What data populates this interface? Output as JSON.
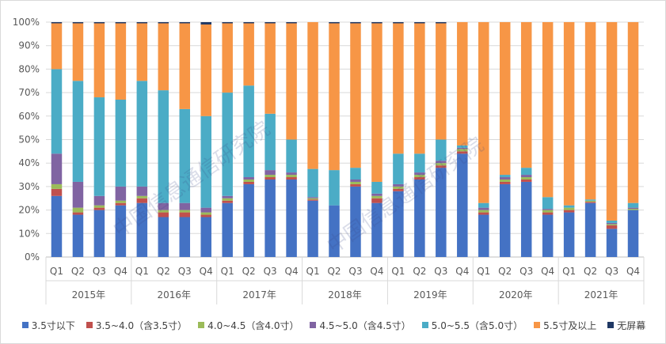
{
  "chart_data": {
    "type": "bar",
    "stacked": true,
    "percent": true,
    "ylim": [
      0,
      100
    ],
    "yticks": [
      "0%",
      "10%",
      "20%",
      "30%",
      "40%",
      "50%",
      "60%",
      "70%",
      "80%",
      "90%",
      "100%"
    ],
    "grid": true,
    "legend_position": "bottom",
    "categories": [
      "Q1",
      "Q2",
      "Q3",
      "Q4",
      "Q1",
      "Q2",
      "Q3",
      "Q4",
      "Q1",
      "Q2",
      "Q3",
      "Q4",
      "Q1",
      "Q2",
      "Q3",
      "Q4",
      "Q1",
      "Q2",
      "Q3",
      "Q4",
      "Q1",
      "Q2",
      "Q3",
      "Q4",
      "Q1",
      "Q2",
      "Q3",
      "Q4"
    ],
    "years": [
      "2015年",
      "2016年",
      "2017年",
      "2018年",
      "2019年",
      "2020年",
      "2021年"
    ],
    "series": [
      {
        "name": "3.5寸以下",
        "color": "#4472C4",
        "values": [
          26,
          18,
          20,
          22,
          23,
          17,
          17,
          17,
          23,
          31,
          33,
          33,
          24,
          22,
          30,
          23,
          28,
          33,
          38,
          44,
          18,
          31,
          32,
          18,
          19,
          23,
          12,
          20
        ]
      },
      {
        "name": "3.5~4.0（含3.5寸）",
        "color": "#C0504D",
        "values": [
          3,
          1,
          1,
          1,
          2,
          2,
          2,
          1,
          1,
          1,
          1,
          1,
          0.5,
          0,
          1,
          2,
          1,
          1,
          1,
          1,
          1,
          1,
          1,
          1,
          1,
          0.5,
          1.5,
          0
        ]
      },
      {
        "name": "4.0~4.5（含4.0寸）",
        "color": "#9BBB59",
        "values": [
          2,
          2,
          1,
          1,
          1,
          1,
          1,
          1,
          1,
          1,
          1,
          1,
          0.5,
          0,
          1,
          1,
          1,
          1,
          1,
          1,
          1,
          1,
          1,
          1,
          1,
          0.5,
          0.5,
          0.5
        ]
      },
      {
        "name": "4.5~5.0（含4.5寸）",
        "color": "#8064A2",
        "values": [
          13,
          11,
          4,
          6,
          4,
          3,
          3,
          2,
          1,
          1,
          2,
          1,
          0.5,
          0,
          1,
          1,
          1,
          1,
          1,
          0.5,
          1,
          1,
          1,
          0.5,
          0,
          0,
          0.5,
          0.5
        ]
      },
      {
        "name": "5.0~5.5（含5.0寸）",
        "color": "#4BACC6",
        "values": [
          36,
          43,
          42,
          37,
          45,
          48,
          40,
          39,
          44,
          39,
          24,
          14,
          12,
          15,
          5,
          5,
          13,
          8,
          9,
          1,
          2,
          1,
          3,
          5,
          1,
          0.5,
          1,
          2
        ]
      },
      {
        "name": "5.5寸及以上",
        "color": "#F79646",
        "values": [
          19.5,
          24.5,
          31.5,
          32.5,
          24.5,
          28.5,
          36.5,
          39,
          29.5,
          26.5,
          38.5,
          49.5,
          62.5,
          62.5,
          61.5,
          67.5,
          55.5,
          55.5,
          49.5,
          52.5,
          77,
          65,
          62,
          74.5,
          78,
          75.5,
          84.5,
          77
        ]
      },
      {
        "name": "无屏幕",
        "color": "#1F3864",
        "values": [
          0.5,
          0.5,
          0.5,
          0.5,
          0.5,
          0.5,
          0.5,
          1,
          0.5,
          0.5,
          0.5,
          0.5,
          0,
          0.5,
          0.5,
          0.5,
          0.5,
          0.5,
          0.5,
          0,
          0,
          0,
          0,
          0,
          0,
          0,
          0,
          0
        ]
      }
    ]
  },
  "watermark": "中国信息通信研究院"
}
